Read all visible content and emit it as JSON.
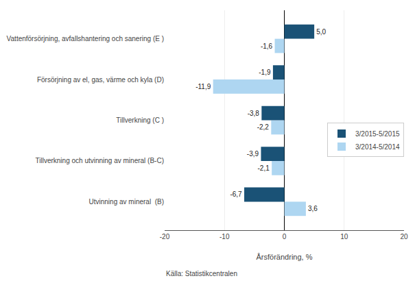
{
  "chart_data": {
    "type": "bar",
    "orientation": "horizontal",
    "categories": [
      "Utvinning av mineral  (B)",
      "Tillverkning och utvinning av mineral (B-C)",
      "Tillverkning (C )",
      "Försörjning av el, gas, värme och kyla (D)",
      "Vattenförsörjning, avfallshantering och sanering (E )"
    ],
    "series": [
      {
        "name": "3/2015-5/2015",
        "color": "#1a5276",
        "values": [
          -6.7,
          -3.9,
          -3.8,
          -1.9,
          5.0
        ],
        "value_labels": [
          "-6,7",
          "-3,9",
          "-3,8",
          "-1,9",
          "5,0"
        ]
      },
      {
        "name": "3/2014-5/2014",
        "color": "#aed6f1",
        "values": [
          3.6,
          -2.1,
          -2.2,
          -11.9,
          -1.6
        ],
        "value_labels": [
          "3,6",
          "-2,1",
          "-2,2",
          "-11,9",
          "-1,6"
        ]
      }
    ],
    "xlabel": "Årsförändring, %",
    "xlim": [
      -20,
      20
    ],
    "xticks": [
      -20,
      -10,
      0,
      10,
      20
    ],
    "annotations": [
      "Källa: Statistikcentralen"
    ],
    "grid": true,
    "legend": "right",
    "data_labels": true
  }
}
